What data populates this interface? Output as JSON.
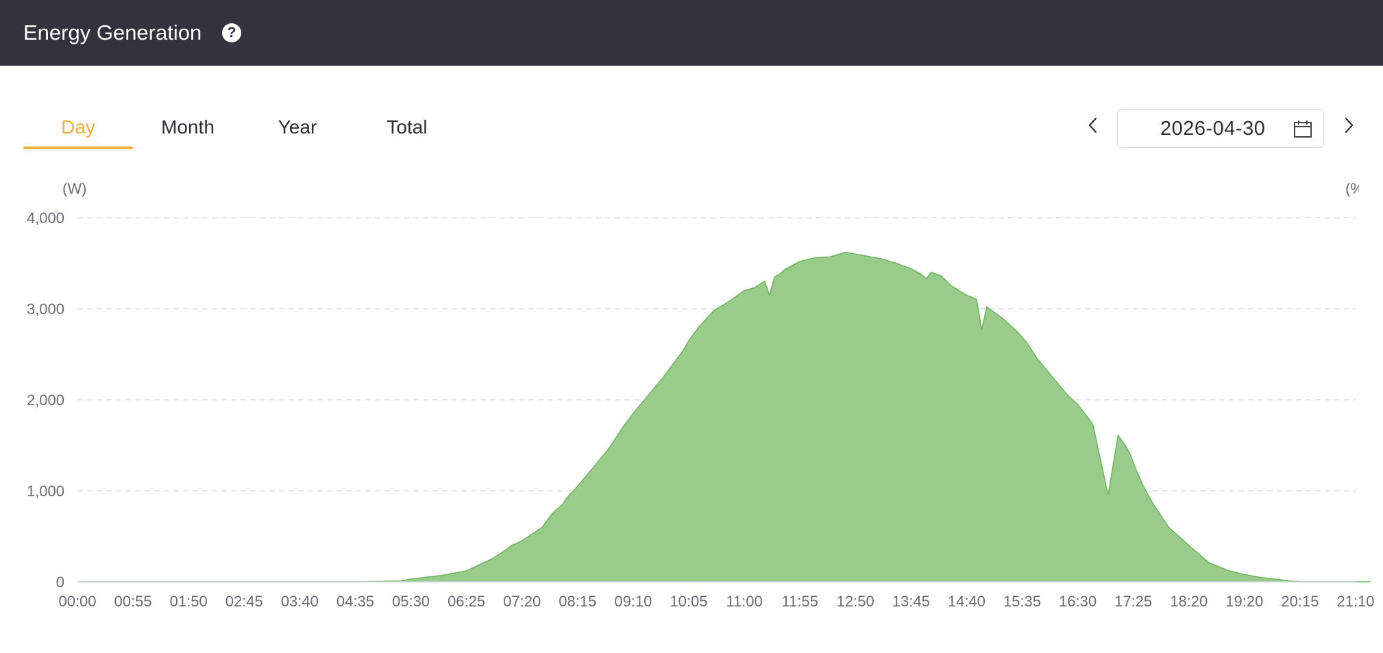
{
  "header": {
    "title": "Energy Generation",
    "help_icon": "question-circle-icon"
  },
  "tabs": [
    {
      "label": "Day",
      "active": true
    },
    {
      "label": "Month",
      "active": false
    },
    {
      "label": "Year",
      "active": false
    },
    {
      "label": "Total",
      "active": false
    }
  ],
  "date_picker": {
    "value": "2026-04-30",
    "prev_icon": "chevron-left-icon",
    "next_icon": "chevron-right-icon",
    "calendar_icon": "calendar-icon"
  },
  "colors": {
    "accent": "#f0b13a",
    "header_bg": "#33323d",
    "area_fill": "#99cb8b",
    "area_stroke": "#6db35b"
  },
  "chart_data": {
    "type": "area",
    "xlabel": "",
    "ylabel_left": "(W)",
    "ylabel_right": "(%",
    "ylim": [
      0,
      4000
    ],
    "yticks": [
      "0",
      "1,000",
      "2,000",
      "3,000",
      "4,000"
    ],
    "ytick_values": [
      0,
      1000,
      2000,
      3000,
      4000
    ],
    "xticks": [
      "00:00",
      "00:55",
      "01:50",
      "02:45",
      "03:40",
      "04:35",
      "05:30",
      "06:25",
      "07:20",
      "08:15",
      "09:10",
      "10:05",
      "11:00",
      "11:55",
      "12:50",
      "13:45",
      "14:40",
      "15:35",
      "16:30",
      "17:25",
      "18:20",
      "19:20",
      "20:15",
      "21:10"
    ],
    "grid": true,
    "series": [
      {
        "x": [
          "00:00",
          "04:35",
          "05:20",
          "05:30",
          "05:45",
          "06:00",
          "06:15",
          "06:25",
          "06:40",
          "06:50",
          "07:00",
          "07:10",
          "07:20",
          "07:40",
          "07:50",
          "08:00",
          "08:05",
          "08:15",
          "08:30",
          "08:45",
          "09:00",
          "09:10",
          "09:25",
          "09:40",
          "09:50",
          "10:00",
          "10:05",
          "10:15",
          "10:30",
          "10:45",
          "11:00",
          "11:10",
          "11:20",
          "11:25",
          "11:30",
          "11:35",
          "11:40",
          "11:55",
          "12:10",
          "12:25",
          "12:40",
          "12:50",
          "13:00",
          "13:15",
          "13:30",
          "13:45",
          "13:55",
          "14:00",
          "14:05",
          "14:15",
          "14:25",
          "14:40",
          "14:50",
          "14:55",
          "15:00",
          "15:05",
          "15:15",
          "15:30",
          "15:40",
          "15:50",
          "16:05",
          "16:20",
          "16:30",
          "16:45",
          "17:00",
          "17:10",
          "17:17",
          "17:22",
          "17:27",
          "17:35",
          "17:45",
          "18:00",
          "18:20",
          "18:40",
          "19:00",
          "19:15",
          "19:30",
          "19:45",
          "20:00",
          "20:15",
          "20:30",
          "20:45",
          "21:00",
          "21:20"
        ],
        "values": [
          0,
          0,
          10,
          30,
          50,
          70,
          100,
          120,
          200,
          250,
          320,
          400,
          450,
          600,
          750,
          850,
          930,
          1050,
          1250,
          1450,
          1700,
          1850,
          2050,
          2250,
          2400,
          2550,
          2650,
          2800,
          2980,
          3080,
          3200,
          3230,
          3300,
          3150,
          3350,
          3380,
          3430,
          3520,
          3560,
          3570,
          3620,
          3600,
          3580,
          3550,
          3500,
          3440,
          3380,
          3330,
          3400,
          3360,
          3250,
          3150,
          3100,
          2770,
          3020,
          2980,
          2900,
          2750,
          2620,
          2450,
          2250,
          2050,
          1950,
          1730,
          950,
          1610,
          1500,
          1400,
          1250,
          1050,
          850,
          600,
          400,
          210,
          120,
          80,
          50,
          30,
          10,
          0,
          0,
          0,
          0,
          0
        ]
      }
    ]
  }
}
